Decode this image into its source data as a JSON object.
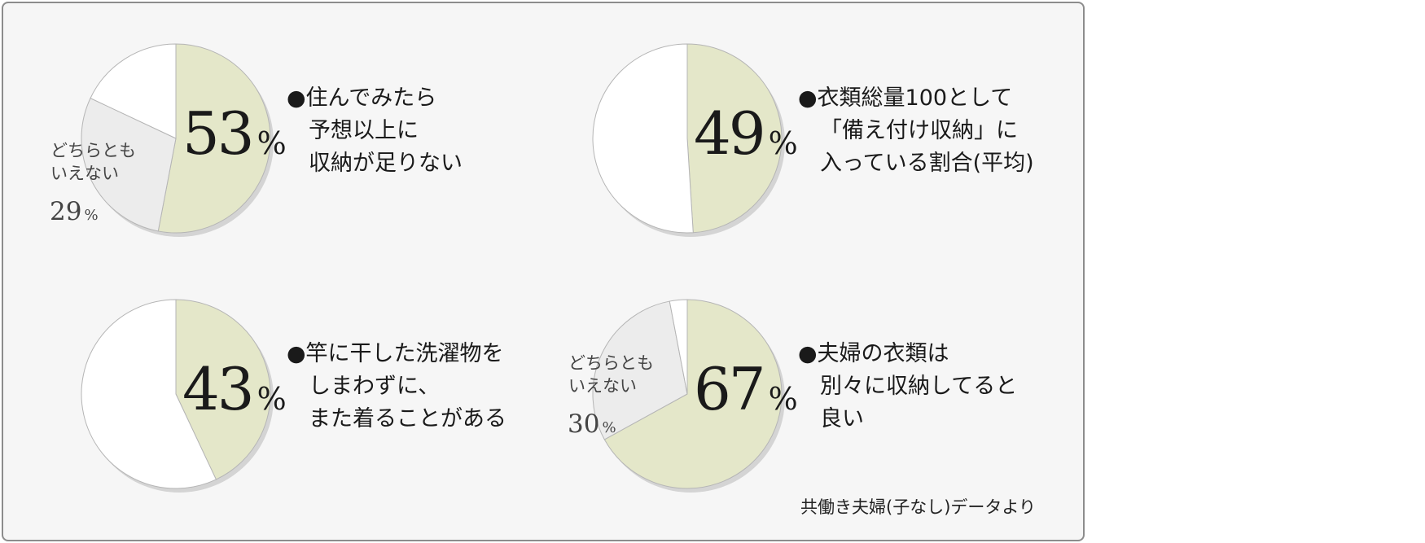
{
  "colors": {
    "main_slice": "#e4e7c9",
    "neutral_slice": "#ececec",
    "other_slice": "#ffffff",
    "stroke": "#b5b5b5"
  },
  "chart_data": [
    {
      "type": "pie",
      "slices": [
        {
          "label": "住んでみたら予想以上に収納が足りない",
          "value": 53,
          "color": "#e4e7c9"
        },
        {
          "label": "どちらともいえない",
          "value": 29,
          "color": "#ececec"
        },
        {
          "label": "",
          "value": 18,
          "color": "#ffffff"
        }
      ],
      "main_value": "53",
      "unit": "%",
      "caption": [
        "●住んでみたら",
        "予想以上に",
        "収納が足りない"
      ],
      "neutral_label": [
        "どちらとも",
        "いえない"
      ],
      "neutral_value": "29",
      "neutral_unit": "%"
    },
    {
      "type": "pie",
      "slices": [
        {
          "label": "衣類総量100として「備え付け収納」に入っている割合(平均)",
          "value": 49,
          "color": "#e4e7c9"
        },
        {
          "label": "",
          "value": 51,
          "color": "#ffffff"
        }
      ],
      "main_value": "49",
      "unit": "%",
      "caption": [
        "●衣類総量100として",
        "「備え付け収納」に",
        "入っている割合(平均)"
      ]
    },
    {
      "type": "pie",
      "slices": [
        {
          "label": "竿に干した洗濯物をしまわずに、また着ることがある",
          "value": 43,
          "color": "#e4e7c9"
        },
        {
          "label": "",
          "value": 57,
          "color": "#ffffff"
        }
      ],
      "main_value": "43",
      "unit": "%",
      "caption": [
        "●竿に干した洗濯物を",
        "しまわずに、",
        "また着ることがある"
      ]
    },
    {
      "type": "pie",
      "slices": [
        {
          "label": "夫婦の衣類は別々に収納してると良い",
          "value": 67,
          "color": "#e4e7c9"
        },
        {
          "label": "どちらともいえない",
          "value": 30,
          "color": "#ececec"
        },
        {
          "label": "",
          "value": 3,
          "color": "#ffffff"
        }
      ],
      "main_value": "67",
      "unit": "%",
      "caption": [
        "●夫婦の衣類は",
        "別々に収納してると",
        "良い"
      ],
      "neutral_label": [
        "どちらとも",
        "いえない"
      ],
      "neutral_value": "30",
      "neutral_unit": "%"
    }
  ],
  "source_note": "共働き夫婦(子なし)データより"
}
